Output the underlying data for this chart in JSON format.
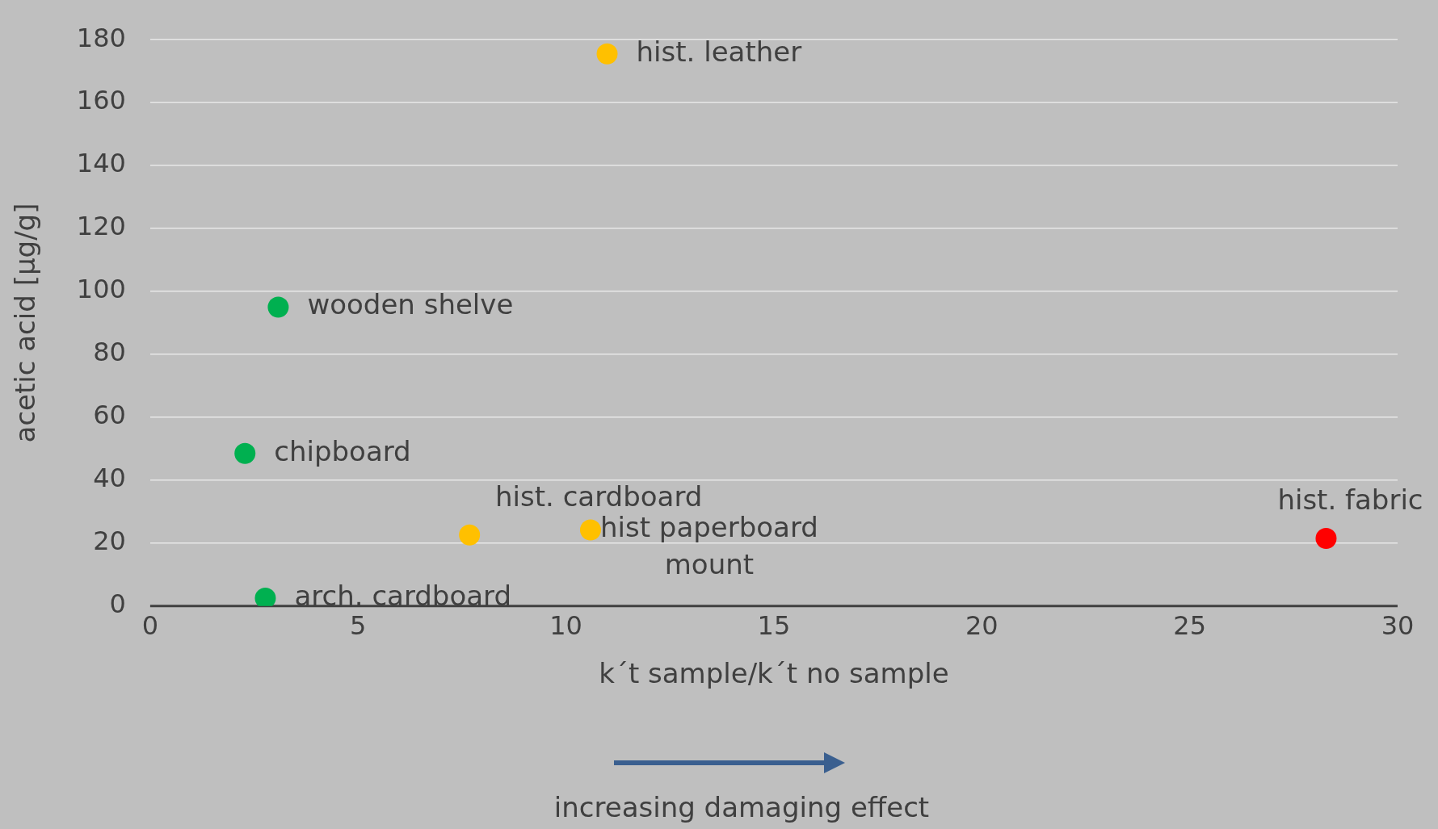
{
  "chart_data": {
    "type": "scatter",
    "xlabel": "k´t sample/k´t no sample",
    "ylabel": "acetic acid [µg/g]",
    "x": [
      10.99,
      3.08,
      2.28,
      7.68,
      10.59,
      2.77,
      28.28
    ],
    "values": [
      175.5,
      95,
      48.5,
      22.6,
      24.2,
      2.5,
      21.5
    ],
    "colors": [
      "#ffc000",
      "#00b050",
      "#00b050",
      "#ffc000",
      "#ffc000",
      "#00b050",
      "#ff0000"
    ],
    "xlim": [
      0,
      30
    ],
    "xticks": [
      0,
      5,
      10,
      15,
      20,
      25,
      30
    ],
    "ylim": [
      0,
      180
    ],
    "yticks": [
      0,
      20,
      40,
      60,
      80,
      100,
      120,
      140,
      160,
      180
    ],
    "grid": "y",
    "legend": false,
    "marker": "circle",
    "annotations": [
      {
        "text": "hist. leather",
        "x": 10.99,
        "y": 175.5
      },
      {
        "text": "wooden shelve",
        "x": 3.08,
        "y": 95
      },
      {
        "text": "chipboard",
        "x": 2.28,
        "y": 48.5
      },
      {
        "text": "hist. cardboard",
        "x": 7.68,
        "y": 22.6
      },
      {
        "text": "hist paperboard mount",
        "x": 10.59,
        "y": 24.2
      },
      {
        "text": "arch. cardboard",
        "x": 2.77,
        "y": 2.5
      },
      {
        "text": "hist. fabric",
        "x": 28.28,
        "y": 21.5
      },
      "increasing damaging effect"
    ]
  }
}
